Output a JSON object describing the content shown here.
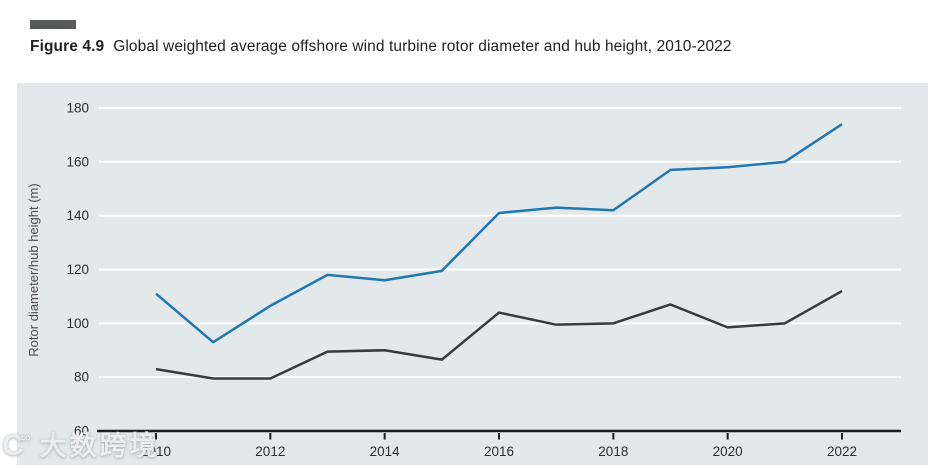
{
  "figure": {
    "label": "Figure 4.9",
    "title": "Global weighted average offshore wind turbine rotor diameter and hub height, 2010-2022"
  },
  "watermark": {
    "logo": "C∞",
    "text": "大数跨境"
  },
  "chart_data": {
    "type": "line",
    "title": "Global weighted average offshore wind turbine rotor diameter and hub height, 2010-2022",
    "x": [
      2010,
      2011,
      2012,
      2013,
      2014,
      2015,
      2016,
      2017,
      2018,
      2019,
      2020,
      2021,
      2022
    ],
    "series": [
      {
        "name": "Rotor diameter",
        "color": "#1f78b0",
        "values": [
          111,
          93,
          106.5,
          118,
          116,
          119.5,
          141,
          143,
          142,
          157,
          158,
          160,
          174
        ]
      },
      {
        "name": "Hub height",
        "color": "#373b3e",
        "values": [
          83,
          79.5,
          79.5,
          89.5,
          90,
          86.5,
          104,
          99.5,
          100,
          107,
          98.5,
          100,
          112
        ]
      }
    ],
    "xlabel": "",
    "ylabel": "Rotor diameter/hub height (m)",
    "ylim": [
      60,
      180
    ],
    "yticks": [
      60,
      80,
      100,
      120,
      140,
      160,
      180
    ],
    "xticks": [
      2010,
      2012,
      2014,
      2016,
      2018,
      2020,
      2022
    ],
    "grid": "horizontal",
    "gridline_color": "#ffffff",
    "plot_bg": "#e3e8ea",
    "axis_color": "#1b1e21",
    "tick_label_color": "#2e2e2e",
    "legend": "none"
  }
}
